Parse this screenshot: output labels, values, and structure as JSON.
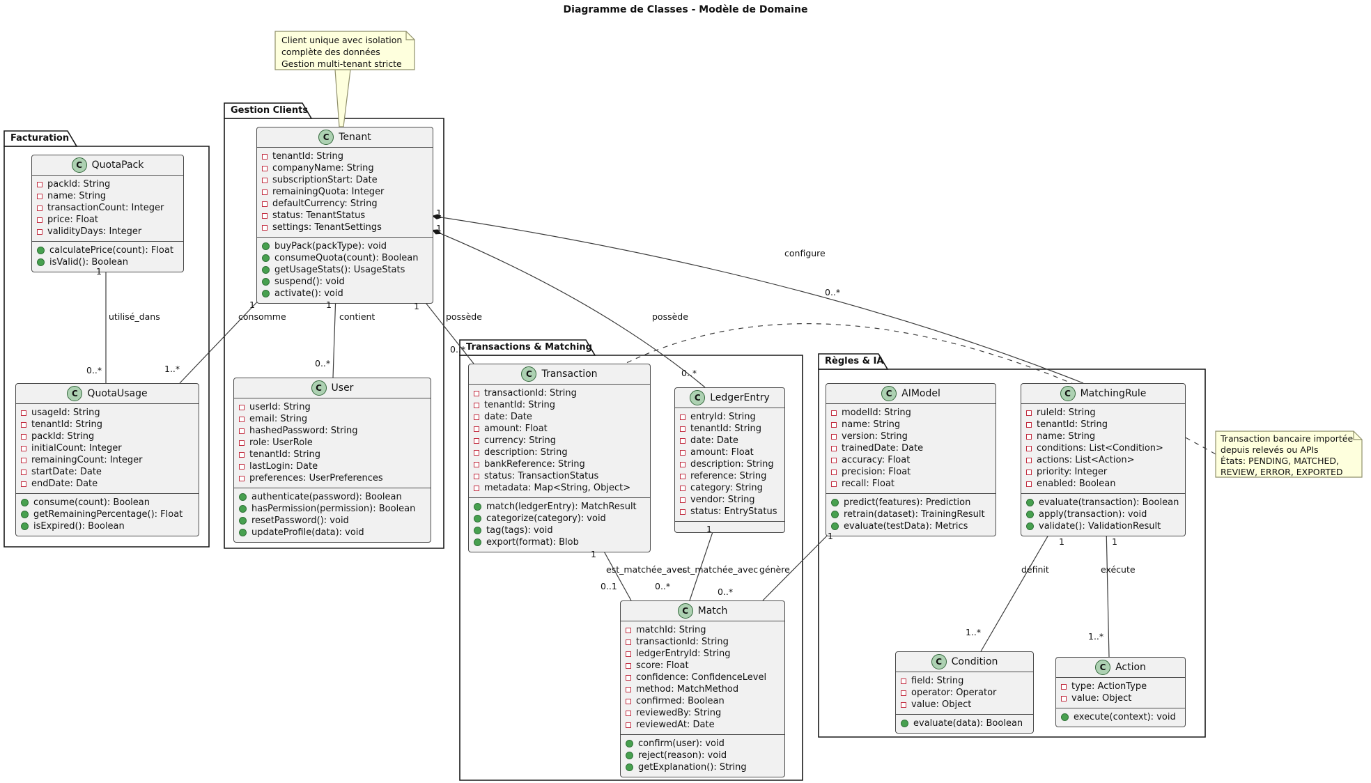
{
  "title": "Diagramme de Classes - Modèle de Domaine",
  "stereotype_letter": "C",
  "colors": {
    "class_fill": "#F1F1F1",
    "class_border": "#4A4A4A",
    "note_fill": "#FEFFDD",
    "note_border": "#8F8F6A",
    "badge_fill": "#ADD1B2",
    "field_icon": "#C22D40",
    "method_icon": "#47A04F",
    "edge_line": "#3B3B3B"
  },
  "packages": {
    "facturation": {
      "name": "Facturation"
    },
    "gestion_clients": {
      "name": "Gestion Clients"
    },
    "transactions_matching": {
      "name": "Transactions & Matching"
    },
    "regles_ia": {
      "name": "Règles & IA"
    }
  },
  "notes": {
    "tenant_note": {
      "lines": [
        "Client unique avec isolation",
        "complète des données",
        "Gestion multi-tenant stricte"
      ]
    },
    "transaction_note": {
      "lines": [
        "Transaction bancaire importée",
        "depuis relevés ou APIs",
        "États: PENDING, MATCHED,",
        "REVIEW, ERROR, EXPORTED"
      ]
    }
  },
  "classes": {
    "quotapack": {
      "name": "QuotaPack",
      "attributes": [
        "packId: String",
        "name: String",
        "transactionCount: Integer",
        "price: Float",
        "validityDays: Integer"
      ],
      "methods": [
        "calculatePrice(count): Float",
        "isValid(): Boolean"
      ]
    },
    "quotausage": {
      "name": "QuotaUsage",
      "attributes": [
        "usageId: String",
        "tenantId: String",
        "packId: String",
        "initialCount: Integer",
        "remainingCount: Integer",
        "startDate: Date",
        "endDate: Date"
      ],
      "methods": [
        "consume(count): Boolean",
        "getRemainingPercentage(): Float",
        "isExpired(): Boolean"
      ]
    },
    "tenant": {
      "name": "Tenant",
      "attributes": [
        "tenantId: String",
        "companyName: String",
        "subscriptionStart: Date",
        "remainingQuota: Integer",
        "defaultCurrency: String",
        "status: TenantStatus",
        "settings: TenantSettings"
      ],
      "methods": [
        "buyPack(packType): void",
        "consumeQuota(count): Boolean",
        "getUsageStats(): UsageStats",
        "suspend(): void",
        "activate(): void"
      ]
    },
    "user": {
      "name": "User",
      "attributes": [
        "userId: String",
        "email: String",
        "hashedPassword: String",
        "role: UserRole",
        "tenantId: String",
        "lastLogin: Date",
        "preferences: UserPreferences"
      ],
      "methods": [
        "authenticate(password): Boolean",
        "hasPermission(permission): Boolean",
        "resetPassword(): void",
        "updateProfile(data): void"
      ]
    },
    "transaction": {
      "name": "Transaction",
      "attributes": [
        "transactionId: String",
        "tenantId: String",
        "date: Date",
        "amount: Float",
        "currency: String",
        "description: String",
        "bankReference: String",
        "status: TransactionStatus",
        "metadata: Map<String, Object>"
      ],
      "methods": [
        "match(ledgerEntry): MatchResult",
        "categorize(category): void",
        "tag(tags): void",
        "export(format): Blob"
      ]
    },
    "ledgerentry": {
      "name": "LedgerEntry",
      "attributes": [
        "entryId: String",
        "tenantId: String",
        "date: Date",
        "amount: Float",
        "description: String",
        "reference: String",
        "category: String",
        "vendor: String",
        "status: EntryStatus"
      ],
      "methods": []
    },
    "match": {
      "name": "Match",
      "attributes": [
        "matchId: String",
        "transactionId: String",
        "ledgerEntryId: String",
        "score: Float",
        "confidence: ConfidenceLevel",
        "method: MatchMethod",
        "confirmed: Boolean",
        "reviewedBy: String",
        "reviewedAt: Date"
      ],
      "methods": [
        "confirm(user): void",
        "reject(reason): void",
        "getExplanation(): String"
      ]
    },
    "aimodel": {
      "name": "AIModel",
      "attributes": [
        "modelId: String",
        "name: String",
        "version: String",
        "trainedDate: Date",
        "accuracy: Float",
        "precision: Float",
        "recall: Float"
      ],
      "methods": [
        "predict(features): Prediction",
        "retrain(dataset): TrainingResult",
        "evaluate(testData): Metrics"
      ]
    },
    "matchingrule": {
      "name": "MatchingRule",
      "attributes": [
        "ruleId: String",
        "tenantId: String",
        "name: String",
        "conditions: List<Condition>",
        "actions: List<Action>",
        "priority: Integer",
        "enabled: Boolean"
      ],
      "methods": [
        "evaluate(transaction): Boolean",
        "apply(transaction): void",
        "validate(): ValidationResult"
      ]
    },
    "condition": {
      "name": "Condition",
      "attributes": [
        "field: String",
        "operator: Operator",
        "value: Object"
      ],
      "methods": [
        "evaluate(data): Boolean"
      ]
    },
    "action": {
      "name": "Action",
      "attributes": [
        "type: ActionType",
        "value: Object"
      ],
      "methods": [
        "execute(context): void"
      ]
    }
  },
  "edges": [
    {
      "from": "QuotaPack",
      "to": "QuotaUsage",
      "label": "utilisé_dans",
      "source_mult": "1",
      "target_mult": "0..*",
      "type": "association"
    },
    {
      "from": "Tenant",
      "to": "QuotaUsage",
      "label": "consomme",
      "source_mult": "1",
      "target_mult": "1..*",
      "type": "composition"
    },
    {
      "from": "Tenant",
      "to": "User",
      "label": "contient",
      "source_mult": "1",
      "target_mult": "0..*",
      "type": "composition"
    },
    {
      "from": "Tenant",
      "to": "Transaction",
      "label": "possède",
      "source_mult": "1",
      "target_mult": "0..*",
      "type": "composition"
    },
    {
      "from": "Tenant",
      "to": "LedgerEntry",
      "label": "possède",
      "source_mult": "1",
      "target_mult": "0..*",
      "type": "composition"
    },
    {
      "from": "Tenant",
      "to": "MatchingRule",
      "label": "configure",
      "source_mult": "1",
      "target_mult": "0..*",
      "type": "composition"
    },
    {
      "from": "Transaction",
      "to": "Match",
      "label": "est_matchée_avec",
      "source_mult": "1",
      "target_mult": "0..1",
      "type": "association"
    },
    {
      "from": "LedgerEntry",
      "to": "Match",
      "label": "est_matchée_avec",
      "source_mult": "1",
      "target_mult": "0..*",
      "type": "association"
    },
    {
      "from": "AIModel",
      "to": "Match",
      "label": "génère",
      "source_mult": "1",
      "target_mult": "0..*",
      "type": "association"
    },
    {
      "from": "MatchingRule",
      "to": "Condition",
      "label": "définit",
      "source_mult": "1",
      "target_mult": "1..*",
      "type": "composition"
    },
    {
      "from": "MatchingRule",
      "to": "Action",
      "label": "exécute",
      "source_mult": "1",
      "target_mult": "1..*",
      "type": "composition"
    }
  ]
}
